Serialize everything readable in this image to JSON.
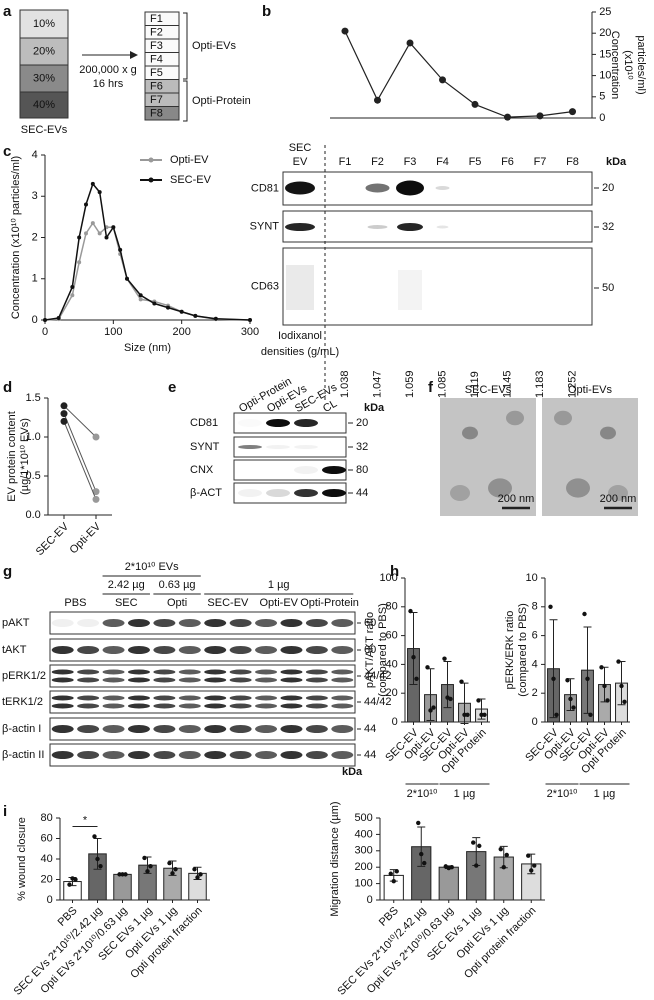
{
  "chart_data": [
    {
      "type": "line",
      "categories": [
        "F1",
        "F2",
        "F3",
        "F4",
        "F5",
        "F6",
        "F7",
        "F8"
      ],
      "values": [
        20.5,
        4.2,
        17.7,
        9,
        3.2,
        0.2,
        0.5,
        1.5
      ],
      "color": "#222222",
      "ylim": [
        0,
        25
      ],
      "yticks": [
        0,
        5,
        10,
        15,
        20,
        25
      ],
      "y_label": [
        "Concentration",
        "(x10¹⁰",
        "particles/ml)"
      ],
      "y_axis": "right"
    },
    {
      "type": "line",
      "x": [
        0,
        20,
        40,
        50,
        60,
        70,
        80,
        90,
        100,
        110,
        120,
        140,
        160,
        180,
        200,
        220,
        250,
        300
      ],
      "xlim": [
        0,
        300
      ],
      "xticks": [
        0,
        100,
        200,
        300
      ],
      "ylim": [
        0,
        4
      ],
      "yticks": [
        0,
        1,
        2,
        3,
        4
      ],
      "x_label": "Size (nm)",
      "y_label": [
        "Concentration (x10¹⁰ particles/ml)"
      ],
      "legend": "upper right",
      "series": [
        {
          "name": "Opti-EV",
          "color": "#999999",
          "values": [
            0,
            0.02,
            0.6,
            1.4,
            2.1,
            2.35,
            2.1,
            2.25,
            2.25,
            1.6,
            1,
            0.5,
            0.45,
            0.35,
            0.2,
            0.1,
            0.02,
            0
          ]
        },
        {
          "name": "SEC-EV",
          "color": "#111111",
          "values": [
            0,
            0.05,
            0.8,
            2,
            2.8,
            3.3,
            3.1,
            2,
            2.25,
            1.7,
            1,
            0.6,
            0.4,
            0.3,
            0.2,
            0.1,
            0.03,
            0
          ]
        }
      ]
    },
    {
      "type": "paired-dot",
      "categories": [
        "SEC-EV",
        "Opti-EV"
      ],
      "colors": [
        "#222222",
        "#999999"
      ],
      "series": [
        {
          "values": [
            1.4,
            1
          ]
        },
        {
          "values": [
            1.3,
            0.3
          ]
        },
        {
          "values": [
            1.2,
            0.2
          ]
        }
      ],
      "ylim": [
        0,
        1.5
      ],
      "yticks": [
        {
          "value": 0,
          "label": "0.0"
        },
        0.5,
        {
          "value": 1,
          "label": "1.0"
        },
        1.5
      ],
      "y_label": [
        "EV protein content",
        "(µg/1*10¹⁰ EVs)"
      ]
    },
    {
      "type": "bar",
      "categories": [
        "SEC-EV",
        "Opti-EV",
        "SEC-EV",
        "Opti-EV",
        "Opti Protein"
      ],
      "values": [
        51,
        19,
        26,
        13,
        9
      ],
      "errors": [
        25,
        18,
        16,
        14,
        7
      ],
      "points": [
        [
          77,
          45,
          30
        ],
        [
          38,
          8,
          10
        ],
        [
          44,
          17,
          16
        ],
        [
          28,
          5,
          5
        ],
        [
          15,
          5,
          5
        ]
      ],
      "colors": [
        "#666666",
        "#999999",
        "#777777",
        "#aaaaaa",
        "#dddddd"
      ],
      "ylim": [
        0,
        100
      ],
      "yticks": [
        0,
        20,
        40,
        60,
        80,
        100
      ],
      "y_label": [
        "pAKT/AKT ratio",
        "(compared to PBS)"
      ],
      "group_labels": [
        "2*10¹⁰",
        "1 µg"
      ]
    },
    {
      "type": "bar",
      "categories": [
        "SEC-EV",
        "Opti-EV",
        "SEC-EV",
        "Opti-EV",
        "Opti Protein"
      ],
      "values": [
        3.7,
        1.9,
        3.6,
        2.6,
        2.7
      ],
      "errors": [
        3.4,
        1.1,
        3,
        1.2,
        1.5
      ],
      "points": [
        [
          8,
          3,
          0.5
        ],
        [
          2.9,
          1.6,
          1
        ],
        [
          7.5,
          3,
          0.5
        ],
        [
          3.8,
          2.5,
          1.5
        ],
        [
          4.2,
          2.5,
          1.4
        ]
      ],
      "colors": [
        "#666666",
        "#999999",
        "#777777",
        "#aaaaaa",
        "#dddddd"
      ],
      "ylim": [
        0,
        10
      ],
      "yticks": [
        0,
        2,
        4,
        6,
        8,
        10
      ],
      "y_label": [
        "pERK/ERK ratio",
        "(compared to PBS)"
      ],
      "group_labels": [
        "2*10¹⁰",
        "1 µg"
      ]
    },
    {
      "type": "bar",
      "categories": [
        "PBS",
        "SEC EVs 2*10¹⁰/2.42 µg",
        "Opti EVs 2*10¹⁰/0.63 µg",
        "SEC EVs 1 µg",
        "Opti EVs 1 µg",
        "Opti protein fraction"
      ],
      "values": [
        18,
        45,
        25,
        34,
        31,
        26
      ],
      "errors": [
        4,
        15,
        0,
        8,
        7,
        6
      ],
      "points": [
        [
          15,
          21,
          20
        ],
        [
          62,
          40,
          33
        ],
        [
          25,
          25,
          25
        ],
        [
          41,
          28,
          33
        ],
        [
          36,
          26,
          30
        ],
        [
          30,
          22,
          25
        ]
      ],
      "colors": [
        "#ffffff",
        "#666666",
        "#999999",
        "#777777",
        "#aaaaaa",
        "#dddddd"
      ],
      "ylim": [
        0,
        80
      ],
      "yticks": [
        0,
        20,
        40,
        60,
        80
      ],
      "y_label": [
        "% wound closure"
      ],
      "annotation": "*"
    },
    {
      "type": "bar",
      "categories": [
        "PBS",
        "SEC EVs 2*10¹⁰/2.42 µg",
        "Opti EVs 2*10¹⁰/0.63 µg",
        "SEC EVs 1 µg",
        "Opti EVs 1 µg",
        "Opti protein fraction"
      ],
      "values": [
        150,
        325,
        200,
        295,
        262,
        220
      ],
      "errors": [
        35,
        120,
        8,
        85,
        65,
        60
      ],
      "points": [
        [
          160,
          115,
          175
        ],
        [
          470,
          280,
          225
        ],
        [
          205,
          195,
          200
        ],
        [
          350,
          210,
          330
        ],
        [
          310,
          200,
          275
        ],
        [
          270,
          180,
          210
        ]
      ],
      "colors": [
        "#ffffff",
        "#666666",
        "#999999",
        "#777777",
        "#aaaaaa",
        "#dddddd"
      ],
      "ylim": [
        0,
        500
      ],
      "yticks": [
        0,
        100,
        200,
        300,
        400,
        500
      ],
      "y_label": [
        "Migration distance (µm)"
      ]
    }
  ],
  "figure": {
    "panel_letters": [
      "a",
      "b",
      "c",
      "d",
      "e",
      "f",
      "g",
      "h",
      "i"
    ],
    "a": {
      "gradient": [
        "10%",
        "20%",
        "30%",
        "40%"
      ],
      "input": "SEC-EVs",
      "spin": [
        "200,000 x g",
        "16 hrs"
      ],
      "fractions": [
        "F1",
        "F2",
        "F3",
        "F4",
        "F5",
        "F6",
        "F7",
        "F8"
      ],
      "pools": [
        "Opti-EVs",
        "Opti-Protein"
      ]
    },
    "b": {
      "ev_lane": [
        "SEC",
        "EV"
      ],
      "kda": "kDa",
      "rows": [
        {
          "label": "CD81",
          "kda": 20
        },
        {
          "label": "SYNT",
          "kda": 32
        },
        {
          "label": "CD63",
          "kda": 50
        }
      ],
      "densities_label": [
        "Iodixanol",
        "densities (g/mL)"
      ],
      "densities": [
        1.038,
        1.047,
        1.059,
        1.085,
        1.119,
        1.145,
        1.183,
        1.252
      ]
    },
    "e": {
      "lanes": [
        "Opti-Protein",
        "Opti-EVs",
        "SEC-EVs",
        "CL"
      ],
      "kda": "kDa",
      "rows": [
        {
          "label": "CD81",
          "kda": 20
        },
        {
          "label": "SYNT",
          "kda": 32
        },
        {
          "label": "CNX",
          "kda": 80
        },
        {
          "label": "β-ACT",
          "kda": 44
        }
      ]
    },
    "f": {
      "images": [
        {
          "title": "SEC-EVs",
          "scale": "200 nm"
        },
        {
          "title": "Opti-EVs",
          "scale": "200 nm"
        }
      ]
    },
    "g": {
      "dose_header": "2*10¹⁰ EVs",
      "doses": [
        "2.42 µg",
        "0.63 µg",
        "1 µg"
      ],
      "groups": [
        "PBS",
        "SEC",
        "Opti",
        "SEC-EV",
        "Opti-EV",
        "Opti-Protein"
      ],
      "kda": "kDa",
      "rows": [
        {
          "label": "pAKT",
          "kda": 60
        },
        {
          "label": "tAKT",
          "kda": 60
        },
        {
          "label": "pERK1/2",
          "kda": "44/42"
        },
        {
          "label": "tERK1/2",
          "kda": "44/42"
        },
        {
          "label": "β-actin I",
          "kda": 44
        },
        {
          "label": "β-actin II",
          "kda": 44
        }
      ]
    }
  }
}
